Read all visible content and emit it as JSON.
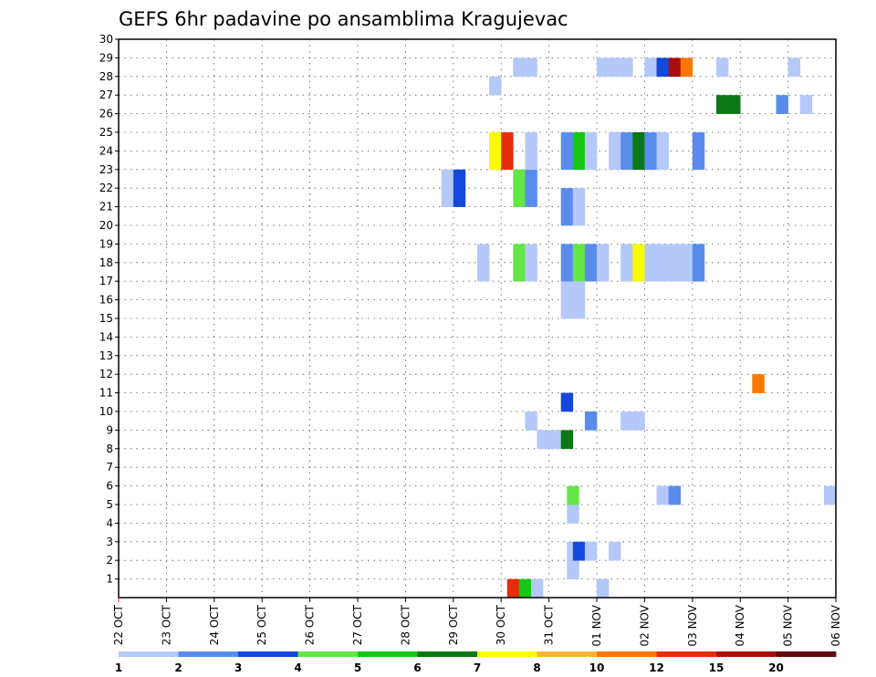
{
  "chart_data": {
    "type": "heatmap",
    "title": "GEFS 6hr padavine po ansamblima Kragujevac",
    "x_unit": "6h step",
    "x_ticks": [
      "22 OCT",
      "23 OCT",
      "24 OCT",
      "25 OCT",
      "26 OCT",
      "27 OCT",
      "28 OCT",
      "29 OCT",
      "30 OCT",
      "31 OCT",
      "01 NOV",
      "02 NOV",
      "03 NOV",
      "04 NOV",
      "05 NOV",
      "06 NOV"
    ],
    "xlim": [
      0,
      60
    ],
    "y_ticks": [
      1,
      2,
      3,
      4,
      5,
      6,
      7,
      8,
      9,
      10,
      11,
      12,
      13,
      14,
      15,
      16,
      17,
      18,
      19,
      20,
      21,
      22,
      23,
      24,
      25,
      26,
      27,
      28,
      29,
      30
    ],
    "ylim": [
      0,
      30
    ],
    "grid": true,
    "colorbar": {
      "labels": [
        "1",
        "2",
        "3",
        "4",
        "5",
        "6",
        "7",
        "8",
        "10",
        "12",
        "15",
        "20"
      ],
      "colors": [
        "#b4c8fa",
        "#5a8ced",
        "#1448dc",
        "#64e646",
        "#14c814",
        "#0a7814",
        "#fafa00",
        "#fab43c",
        "#fa7800",
        "#e62d0a",
        "#aa0f0f",
        "#640a0a"
      ]
    },
    "cells": [
      {
        "x": 32.5,
        "y": 0,
        "c": 9
      },
      {
        "x": 33.5,
        "y": 0,
        "c": 4
      },
      {
        "x": 34.5,
        "y": 0,
        "c": 0
      },
      {
        "x": 40,
        "y": 0,
        "c": 0
      },
      {
        "x": 37.5,
        "y": 1,
        "c": 0
      },
      {
        "x": 37.5,
        "y": 2,
        "c": 0
      },
      {
        "x": 38,
        "y": 2,
        "c": 2
      },
      {
        "x": 39,
        "y": 2,
        "c": 0
      },
      {
        "x": 41,
        "y": 2,
        "c": 0
      },
      {
        "x": 37.5,
        "y": 4,
        "c": 0
      },
      {
        "x": 37.5,
        "y": 5,
        "c": 3
      },
      {
        "x": 45,
        "y": 5,
        "c": 0
      },
      {
        "x": 46,
        "y": 5,
        "c": 1
      },
      {
        "x": 59,
        "y": 5,
        "c": 0
      },
      {
        "x": 35,
        "y": 8,
        "c": 0
      },
      {
        "x": 36,
        "y": 8,
        "c": 0
      },
      {
        "x": 37,
        "y": 8,
        "c": 5
      },
      {
        "x": 34,
        "y": 9,
        "c": 0
      },
      {
        "x": 39,
        "y": 9,
        "c": 1
      },
      {
        "x": 42,
        "y": 9,
        "c": 0
      },
      {
        "x": 43,
        "y": 9,
        "c": 0
      },
      {
        "x": 37,
        "y": 10,
        "c": 2
      },
      {
        "x": 53,
        "y": 11,
        "c": 8
      },
      {
        "x": 37,
        "y": 15,
        "c": 0
      },
      {
        "x": 38,
        "y": 15,
        "c": 0
      },
      {
        "x": 37,
        "y": 16,
        "c": 0
      },
      {
        "x": 38,
        "y": 16,
        "c": 0
      },
      {
        "x": 30,
        "y": 17,
        "c": 0
      },
      {
        "x": 33,
        "y": 17,
        "c": 3
      },
      {
        "x": 34,
        "y": 17,
        "c": 0
      },
      {
        "x": 37,
        "y": 17,
        "c": 1
      },
      {
        "x": 38,
        "y": 17,
        "c": 3
      },
      {
        "x": 39,
        "y": 17,
        "c": 1
      },
      {
        "x": 40,
        "y": 17,
        "c": 0
      },
      {
        "x": 42,
        "y": 17,
        "c": 0
      },
      {
        "x": 43,
        "y": 17,
        "c": 6
      },
      {
        "x": 44,
        "y": 17,
        "c": 0
      },
      {
        "x": 45,
        "y": 17,
        "c": 0
      },
      {
        "x": 46,
        "y": 17,
        "c": 0
      },
      {
        "x": 47,
        "y": 17,
        "c": 0
      },
      {
        "x": 48,
        "y": 17,
        "c": 1
      },
      {
        "x": 30,
        "y": 18,
        "c": 0
      },
      {
        "x": 33,
        "y": 18,
        "c": 3
      },
      {
        "x": 34,
        "y": 18,
        "c": 0
      },
      {
        "x": 37,
        "y": 18,
        "c": 1
      },
      {
        "x": 38,
        "y": 18,
        "c": 3
      },
      {
        "x": 39,
        "y": 18,
        "c": 1
      },
      {
        "x": 40,
        "y": 18,
        "c": 0
      },
      {
        "x": 42,
        "y": 18,
        "c": 0
      },
      {
        "x": 43,
        "y": 18,
        "c": 6
      },
      {
        "x": 44,
        "y": 18,
        "c": 0
      },
      {
        "x": 45,
        "y": 18,
        "c": 0
      },
      {
        "x": 46,
        "y": 18,
        "c": 0
      },
      {
        "x": 47,
        "y": 18,
        "c": 0
      },
      {
        "x": 48,
        "y": 18,
        "c": 1
      },
      {
        "x": 37,
        "y": 20,
        "c": 1
      },
      {
        "x": 38,
        "y": 20,
        "c": 0
      },
      {
        "x": 37,
        "y": 21,
        "c": 1
      },
      {
        "x": 38,
        "y": 21,
        "c": 0
      },
      {
        "x": 27,
        "y": 21,
        "c": 0
      },
      {
        "x": 28,
        "y": 21,
        "c": 2
      },
      {
        "x": 33,
        "y": 21,
        "c": 3
      },
      {
        "x": 34,
        "y": 21,
        "c": 1
      },
      {
        "x": 27,
        "y": 22,
        "c": 0
      },
      {
        "x": 28,
        "y": 22,
        "c": 2
      },
      {
        "x": 33,
        "y": 22,
        "c": 3
      },
      {
        "x": 34,
        "y": 22,
        "c": 1
      },
      {
        "x": 31,
        "y": 23,
        "c": 6
      },
      {
        "x": 32,
        "y": 23,
        "c": 9
      },
      {
        "x": 34,
        "y": 23,
        "c": 0
      },
      {
        "x": 37,
        "y": 23,
        "c": 1
      },
      {
        "x": 38,
        "y": 23,
        "c": 4
      },
      {
        "x": 39,
        "y": 23,
        "c": 0
      },
      {
        "x": 41,
        "y": 23,
        "c": 0
      },
      {
        "x": 42,
        "y": 23,
        "c": 1
      },
      {
        "x": 43,
        "y": 23,
        "c": 5
      },
      {
        "x": 44,
        "y": 23,
        "c": 1
      },
      {
        "x": 45,
        "y": 23,
        "c": 0
      },
      {
        "x": 48,
        "y": 23,
        "c": 1
      },
      {
        "x": 31,
        "y": 24,
        "c": 6
      },
      {
        "x": 32,
        "y": 24,
        "c": 9
      },
      {
        "x": 34,
        "y": 24,
        "c": 0
      },
      {
        "x": 37,
        "y": 24,
        "c": 1
      },
      {
        "x": 38,
        "y": 24,
        "c": 4
      },
      {
        "x": 39,
        "y": 24,
        "c": 0
      },
      {
        "x": 41,
        "y": 24,
        "c": 0
      },
      {
        "x": 42,
        "y": 24,
        "c": 1
      },
      {
        "x": 43,
        "y": 24,
        "c": 5
      },
      {
        "x": 44,
        "y": 24,
        "c": 1
      },
      {
        "x": 45,
        "y": 24,
        "c": 0
      },
      {
        "x": 48,
        "y": 24,
        "c": 1
      },
      {
        "x": 50,
        "y": 26,
        "c": 5
      },
      {
        "x": 51,
        "y": 26,
        "c": 5
      },
      {
        "x": 55,
        "y": 26,
        "c": 1
      },
      {
        "x": 57,
        "y": 26,
        "c": 0
      },
      {
        "x": 31,
        "y": 27,
        "c": 0
      },
      {
        "x": 33,
        "y": 28,
        "c": 0
      },
      {
        "x": 34,
        "y": 28,
        "c": 0
      },
      {
        "x": 40,
        "y": 28,
        "c": 0
      },
      {
        "x": 41,
        "y": 28,
        "c": 0
      },
      {
        "x": 42,
        "y": 28,
        "c": 0
      },
      {
        "x": 44,
        "y": 28,
        "c": 0
      },
      {
        "x": 45,
        "y": 28,
        "c": 2
      },
      {
        "x": 46,
        "y": 28,
        "c": 10
      },
      {
        "x": 47,
        "y": 28,
        "c": 8
      },
      {
        "x": 50,
        "y": 28,
        "c": 0
      },
      {
        "x": 56,
        "y": 28,
        "c": 0
      }
    ]
  }
}
